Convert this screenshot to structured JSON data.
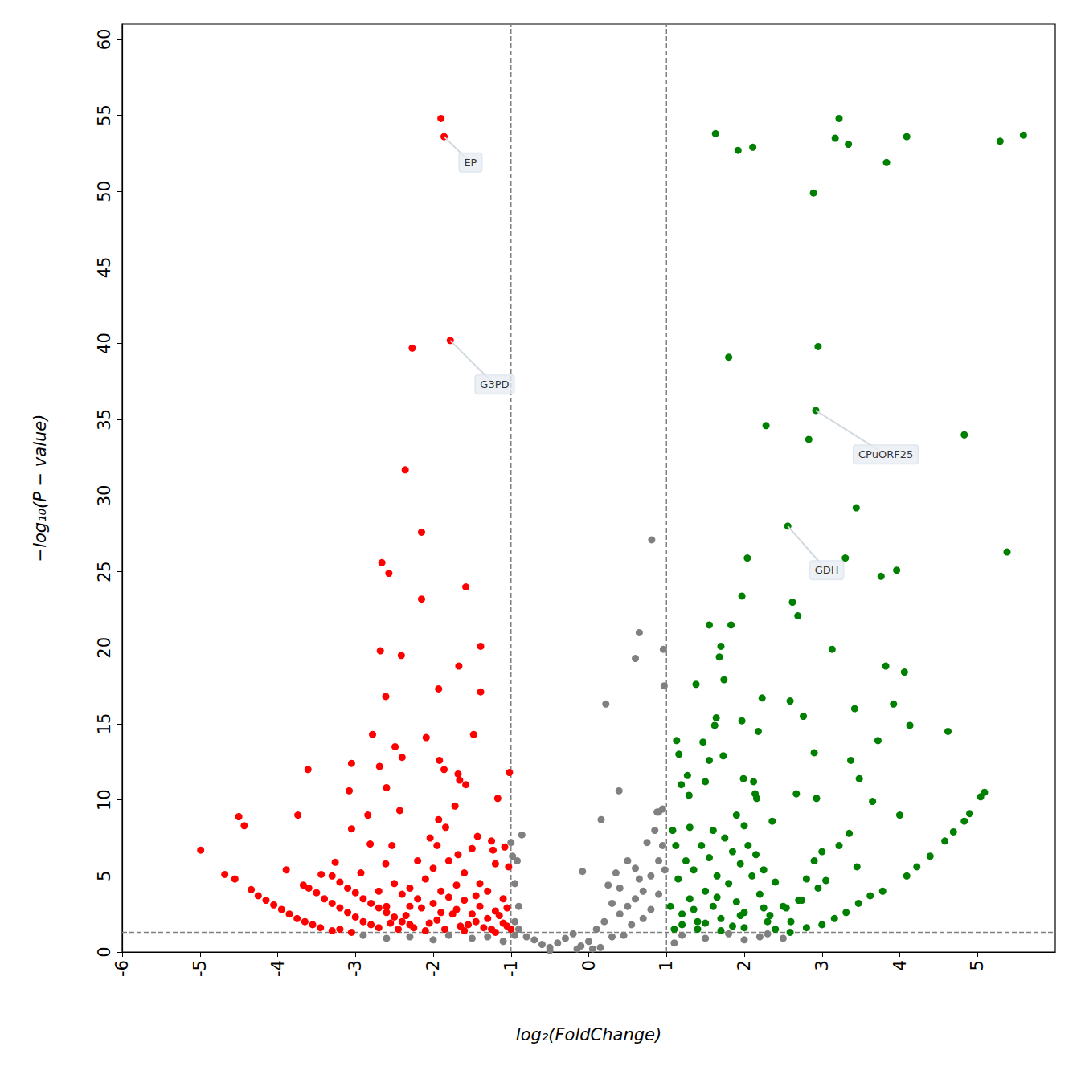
{
  "chart_data": {
    "type": "scatter",
    "x_label": "log₂(FoldChange)",
    "y_label": "−log₁₀(P − value)",
    "xlim": [
      -6,
      6
    ],
    "xticks": [
      -6,
      -5,
      -4,
      -3,
      -2,
      -1,
      0,
      1,
      2,
      3,
      4,
      5
    ],
    "ylim": [
      0,
      61
    ],
    "yticks": [
      0,
      5,
      10,
      15,
      20,
      25,
      30,
      35,
      40,
      45,
      50,
      55,
      60
    ],
    "grid": false,
    "marker": "circle",
    "thresholds": {
      "x": [
        -1,
        1
      ],
      "y": [
        1.3
      ],
      "color": "#808080",
      "line_style": "dashed"
    },
    "series": [
      {
        "color": "#ff0000",
        "x": [
          -1.9,
          -1.86,
          -1.78,
          -2.27,
          -2.36,
          -2.15,
          -2.66,
          -2.57,
          -1.58,
          -2.15,
          -2.68,
          -2.41,
          -1.39,
          -1.67,
          -2.61,
          -1.93,
          -1.39,
          -2.78,
          -2.09,
          -1.48,
          -2.49,
          -2.4,
          -3.05,
          -2.69,
          -3.61,
          -1.92,
          -1.86,
          -1.68,
          -1.66,
          -1.58,
          -1.02,
          -2.6,
          -3.08,
          -1.72,
          -1.17,
          -2.43,
          -3.74,
          -2.84,
          -4.5,
          -4.43,
          -3.05,
          -1.93,
          -1.84,
          -2.04,
          -1.43,
          -2.81,
          -2.53,
          -4.99,
          -1.68,
          -1.23,
          -3.26,
          -2.61,
          -3.89,
          -4.68,
          -4.55,
          -4.34,
          -3.67,
          -3.44,
          -2.93,
          -4.25,
          -4.15,
          -4.05,
          -3.95,
          -3.85,
          -3.75,
          -3.65,
          -3.55,
          -3.45,
          -3.3,
          -3.6,
          -3.5,
          -3.4,
          -3.3,
          -3.2,
          -3.1,
          -3.0,
          -2.9,
          -2.8,
          -2.7,
          -3.3,
          -3.2,
          -3.1,
          -3.0,
          -2.9,
          -2.8,
          -2.7,
          -2.6,
          -2.5,
          -2.4,
          -2.3,
          -3.05,
          -3.2,
          -2.5,
          -2.4,
          -2.3,
          -2.2,
          -2.1,
          -2.0,
          -1.9,
          -1.8,
          -1.7,
          -1.6,
          -1.5,
          -1.4,
          -1.3,
          -1.2,
          -1.1,
          -2.35,
          -2.15,
          -1.95,
          -1.75,
          -1.55,
          -1.35,
          -1.15,
          -2.25,
          -2.05,
          -1.85,
          -1.65,
          -1.45,
          -1.25,
          -1.05,
          -2.45,
          -2.0,
          -1.8,
          -1.6,
          -1.4,
          -1.2,
          -1.1,
          -1.3,
          -2.2,
          -1.95,
          -2.6,
          -2.7,
          -1.5,
          -1.25,
          -1.08,
          -1.03,
          -1.9,
          -1.7,
          -2.55,
          -2.1,
          -1.6,
          -1.2,
          -1.45,
          -2.3,
          -1.05,
          -1.0
        ],
        "y": [
          54.8,
          53.6,
          40.2,
          39.7,
          31.7,
          27.6,
          25.6,
          24.9,
          24.0,
          23.2,
          19.8,
          19.5,
          20.1,
          18.8,
          16.8,
          17.3,
          17.1,
          14.3,
          14.1,
          14.3,
          13.5,
          12.8,
          12.4,
          12.2,
          12.0,
          12.6,
          12.0,
          11.7,
          11.3,
          11.0,
          11.8,
          10.8,
          10.6,
          9.6,
          10.1,
          9.3,
          9.0,
          9.0,
          8.9,
          8.3,
          8.1,
          8.7,
          8.2,
          7.5,
          7.6,
          7.1,
          7.0,
          6.7,
          6.4,
          6.7,
          5.9,
          5.8,
          5.4,
          5.1,
          4.8,
          4.1,
          4.4,
          5.1,
          5.2,
          3.7,
          3.4,
          3.1,
          2.8,
          2.5,
          2.2,
          2.0,
          1.8,
          1.6,
          1.4,
          4.2,
          3.9,
          3.5,
          3.2,
          2.9,
          2.6,
          2.3,
          2.0,
          1.8,
          1.6,
          5.0,
          4.6,
          4.2,
          3.9,
          3.5,
          3.2,
          2.9,
          2.6,
          2.3,
          2.0,
          1.8,
          1.3,
          1.5,
          4.5,
          3.8,
          4.2,
          3.5,
          4.8,
          3.2,
          4.0,
          3.6,
          2.8,
          3.4,
          2.5,
          3.0,
          2.2,
          2.7,
          1.9,
          2.4,
          2.9,
          2.1,
          2.5,
          1.8,
          1.6,
          2.4,
          1.6,
          1.9,
          1.5,
          1.7,
          2.0,
          1.5,
          1.7,
          1.5,
          5.5,
          6.0,
          5.2,
          4.5,
          5.8,
          3.5,
          4.0,
          6.0,
          7.0,
          3.0,
          4.0,
          6.8,
          7.3,
          6.9,
          5.6,
          2.6,
          4.4,
          1.9,
          1.4,
          1.4,
          1.3,
          3.7,
          3.0,
          2.9,
          1.5
        ]
      },
      {
        "color": "#808080",
        "x": [
          -0.9,
          -0.8,
          -0.7,
          -0.6,
          -0.5,
          -0.4,
          -0.3,
          -0.2,
          -0.1,
          0.0,
          0.1,
          0.2,
          0.3,
          0.4,
          0.5,
          0.6,
          0.7,
          0.8,
          0.9,
          0.95,
          0.85,
          0.9,
          0.95,
          0.5,
          0.6,
          0.4,
          0.3,
          0.7,
          0.8,
          0.65,
          0.55,
          0.45,
          0.15,
          -0.15,
          0.75,
          0.25,
          0.35,
          0.9,
          0.98,
          -0.95,
          -0.9,
          -0.95,
          -0.92,
          -0.86,
          -1.0,
          -0.98,
          -0.95,
          -0.08,
          0.16,
          0.39,
          0.22,
          0.6,
          0.65,
          0.81,
          0.96,
          0.97,
          0.88,
          -2.9,
          -2.6,
          -2.3,
          -2.0,
          -1.8,
          -1.5,
          -1.3,
          -1.1,
          1.2,
          1.5,
          1.8,
          2.0,
          2.2,
          2.5,
          2.3,
          1.1,
          -0.5,
          0.05
        ],
        "y": [
          1.5,
          1.0,
          0.8,
          0.5,
          0.3,
          0.6,
          0.9,
          1.2,
          0.4,
          0.7,
          1.5,
          2.0,
          1.0,
          2.5,
          3.0,
          3.5,
          4.0,
          5.0,
          6.0,
          7.0,
          8.0,
          9.2,
          9.4,
          6.0,
          5.5,
          4.2,
          3.2,
          2.2,
          2.8,
          4.8,
          1.8,
          1.1,
          0.3,
          0.2,
          7.2,
          4.4,
          5.2,
          3.8,
          5.4,
          2.0,
          3.0,
          4.5,
          6.0,
          7.7,
          7.2,
          6.3,
          1.1,
          5.3,
          8.7,
          10.6,
          16.3,
          19.3,
          21.0,
          27.1,
          19.9,
          17.5,
          9.2,
          1.1,
          0.9,
          1.0,
          0.8,
          1.1,
          0.9,
          1.0,
          0.7,
          1.1,
          0.9,
          1.2,
          0.8,
          1.0,
          0.9,
          1.2,
          0.6,
          0.1,
          0.2
        ]
      },
      {
        "color": "#008000",
        "x": [
          3.22,
          1.63,
          3.17,
          3.34,
          4.09,
          1.92,
          2.11,
          5.59,
          5.29,
          3.83,
          2.89,
          1.8,
          2.95,
          2.92,
          2.28,
          2.83,
          4.83,
          3.44,
          2.56,
          3.3,
          2.04,
          5.38,
          3.96,
          3.76,
          1.97,
          2.62,
          2.69,
          1.55,
          1.83,
          1.7,
          1.68,
          3.13,
          3.82,
          4.06,
          1.74,
          1.38,
          2.23,
          2.59,
          1.64,
          3.92,
          3.42,
          2.76,
          1.62,
          1.97,
          2.18,
          4.13,
          4.62,
          1.13,
          1.47,
          3.72,
          1.16,
          1.73,
          2.9,
          1.55,
          3.37,
          1.27,
          3.48,
          1.5,
          1.99,
          2.12,
          1.19,
          2.14,
          2.16,
          2.67,
          2.93,
          3.65,
          5.09,
          5.04,
          4.0,
          4.9,
          4.83,
          4.69,
          4.58,
          3.35,
          2.36,
          1.29,
          4.39,
          4.22,
          4.09,
          3.45,
          3.22,
          3.78,
          3.62,
          3.47,
          3.31,
          3.16,
          3.0,
          2.8,
          2.59,
          3.05,
          2.95,
          2.74,
          2.54,
          2.33,
          1.1,
          1.2,
          1.3,
          1.4,
          1.5,
          1.6,
          1.7,
          1.8,
          1.9,
          2.0,
          2.1,
          2.2,
          2.3,
          2.4,
          2.5,
          1.15,
          1.25,
          1.35,
          1.45,
          1.55,
          1.65,
          1.75,
          1.85,
          1.95,
          2.05,
          2.15,
          2.25,
          1.05,
          1.08,
          1.12,
          1.3,
          1.6,
          1.9,
          2.0,
          1.2,
          1.4,
          1.7,
          2.0,
          2.4,
          2.6,
          2.7,
          2.8,
          2.9,
          3.0,
          1.35,
          1.65,
          1.95,
          2.25,
          1.5,
          1.85
        ],
        "y": [
          54.8,
          53.8,
          53.5,
          53.1,
          53.6,
          52.7,
          52.9,
          53.7,
          53.3,
          51.9,
          49.9,
          39.1,
          39.8,
          35.6,
          34.6,
          33.7,
          34.0,
          29.2,
          28.0,
          25.9,
          25.9,
          26.3,
          25.1,
          24.7,
          23.4,
          23.0,
          22.1,
          21.5,
          21.5,
          20.1,
          19.4,
          19.9,
          18.8,
          18.4,
          17.9,
          17.6,
          16.7,
          16.5,
          15.4,
          16.3,
          16.0,
          15.5,
          14.9,
          15.2,
          14.5,
          14.9,
          14.5,
          13.9,
          13.8,
          13.9,
          13.0,
          12.9,
          13.1,
          12.6,
          12.6,
          11.6,
          11.4,
          11.2,
          11.4,
          11.2,
          11.0,
          10.4,
          10.1,
          10.4,
          10.1,
          9.9,
          10.5,
          10.2,
          9.0,
          9.1,
          8.6,
          7.9,
          7.3,
          7.8,
          8.6,
          10.3,
          6.3,
          5.6,
          5.0,
          5.6,
          7.0,
          4.0,
          3.7,
          3.2,
          2.6,
          2.2,
          1.8,
          1.6,
          1.3,
          4.7,
          4.2,
          3.4,
          2.9,
          2.4,
          1.5,
          2.5,
          3.5,
          2.0,
          4.0,
          3.0,
          2.2,
          4.5,
          3.3,
          2.6,
          5.0,
          3.8,
          2.0,
          4.6,
          3.0,
          4.8,
          6.0,
          5.4,
          7.0,
          6.2,
          5.0,
          7.5,
          6.6,
          5.8,
          7.0,
          6.4,
          5.4,
          3.0,
          8.0,
          7.0,
          8.2,
          8.0,
          9.0,
          8.3,
          1.8,
          1.5,
          1.4,
          1.6,
          1.5,
          2.0,
          3.4,
          4.8,
          6.0,
          6.6,
          2.8,
          3.6,
          2.4,
          2.9,
          1.9,
          1.7
        ]
      }
    ],
    "annotations": [
      {
        "text": "EP",
        "x": -1.86,
        "y": 53.6,
        "text_x": -1.52,
        "text_y": 51.9
      },
      {
        "text": "G3PD",
        "x": -1.78,
        "y": 40.2,
        "text_x": -1.21,
        "text_y": 37.3
      },
      {
        "text": "CPuORF25",
        "x": 2.92,
        "y": 35.6,
        "text_x": 3.82,
        "text_y": 32.7
      },
      {
        "text": "GDH",
        "x": 2.56,
        "y": 28.0,
        "text_x": 3.06,
        "text_y": 25.1
      }
    ]
  }
}
